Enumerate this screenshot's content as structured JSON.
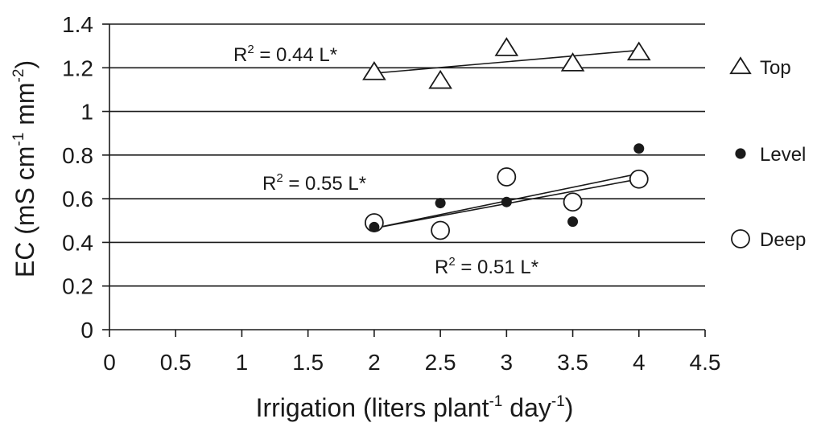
{
  "chart_data": {
    "type": "scatter",
    "xlabel": "Irrigation (liters plant",
    "xlabel_sup1": "-1",
    "xlabel_mid": " day",
    "xlabel_sup2": "-1",
    "xlabel_end": ")",
    "ylabel": "EC (mS cm",
    "ylabel_sup1": "-1",
    "ylabel_mid": " mm",
    "ylabel_sup2": "-2",
    "ylabel_end": ")",
    "xlim": [
      0,
      4.5
    ],
    "ylim": [
      0,
      1.4
    ],
    "x_ticks": [
      "0",
      "0.5",
      "1",
      "1.5",
      "2",
      "2.5",
      "3",
      "3.5",
      "4",
      "4.5"
    ],
    "y_ticks": [
      "0",
      "0.2",
      "0.4",
      "0.6",
      "0.8",
      "1",
      "1.2",
      "1.4"
    ],
    "grid": "horizontal",
    "legend_position": "right",
    "series": [
      {
        "name": "Top",
        "marker": "open-triangle",
        "x": [
          2,
          2.5,
          3,
          3.5,
          4
        ],
        "y": [
          1.18,
          1.14,
          1.29,
          1.22,
          1.27
        ],
        "trend": {
          "x": [
            2,
            4
          ],
          "y": [
            1.175,
            1.28
          ]
        },
        "annotation": {
          "r2": "R",
          "sup": "2",
          "rest": " = 0.44 L*"
        }
      },
      {
        "name": "Level",
        "marker": "filled-circle",
        "x": [
          2,
          2.5,
          3,
          3.5,
          4
        ],
        "y": [
          0.47,
          0.58,
          0.585,
          0.495,
          0.83
        ],
        "trend": {
          "x": [
            2,
            4
          ],
          "y": [
            0.465,
            0.715
          ]
        },
        "annotation": {
          "r2": "R",
          "sup": "2",
          "rest": " = 0.55 L*"
        }
      },
      {
        "name": "Deep",
        "marker": "open-circle",
        "x": [
          2,
          2.5,
          3,
          3.5,
          4
        ],
        "y": [
          0.49,
          0.455,
          0.7,
          0.585,
          0.69
        ],
        "trend": {
          "x": [
            2,
            4
          ],
          "y": [
            0.465,
            0.69
          ]
        },
        "annotation": {
          "r2": "R",
          "sup": "2",
          "rest": " = 0.51 L*"
        }
      }
    ]
  }
}
